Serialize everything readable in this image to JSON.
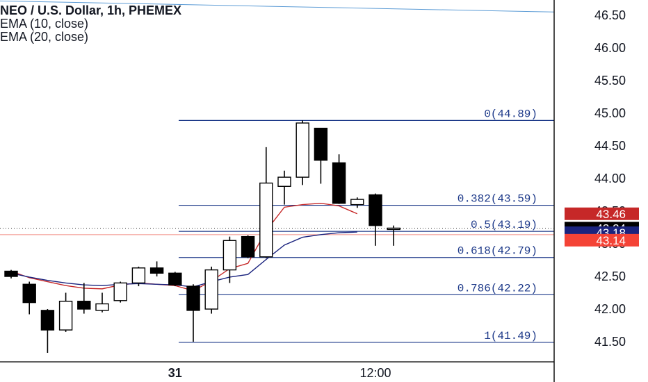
{
  "legend": {
    "title": "NEO / U.S. Dollar, 1h, PHEMEX",
    "ema1": "EMA (10, close)",
    "ema2": "EMA (20, close)"
  },
  "colors": {
    "fib": "#1e3a8a",
    "ema10": "#c62828",
    "ema20": "#1a237e",
    "candle_up_fill": "#ffffff",
    "candle_down_fill": "#000000",
    "grid_text": "#131722",
    "trendline": "#5b9bd5"
  },
  "chart_data": {
    "type": "candlestick",
    "symbol": "NEO / U.S. Dollar",
    "timeframe": "1h",
    "exchange": "PHEMEX",
    "ylim": [
      41.2,
      46.7
    ],
    "yticks": [
      "46.50",
      "46.00",
      "45.50",
      "45.00",
      "44.50",
      "44.00",
      "43.50",
      "43.00",
      "42.50",
      "42.00",
      "41.50"
    ],
    "xticks": [
      {
        "index": 9,
        "label": "31"
      },
      {
        "index": 20,
        "label": "12:00"
      }
    ],
    "candles": [
      {
        "o": 42.58,
        "h": 42.6,
        "l": 42.47,
        "c": 42.5
      },
      {
        "o": 42.38,
        "h": 42.42,
        "l": 41.92,
        "c": 42.1
      },
      {
        "o": 41.98,
        "h": 42.0,
        "l": 41.33,
        "c": 41.68
      },
      {
        "o": 41.68,
        "h": 42.25,
        "l": 41.65,
        "c": 42.12
      },
      {
        "o": 42.12,
        "h": 42.4,
        "l": 41.93,
        "c": 42.0
      },
      {
        "o": 41.98,
        "h": 42.25,
        "l": 41.95,
        "c": 42.08
      },
      {
        "o": 42.13,
        "h": 42.42,
        "l": 42.1,
        "c": 42.4
      },
      {
        "o": 42.4,
        "h": 42.65,
        "l": 42.35,
        "c": 42.63
      },
      {
        "o": 42.63,
        "h": 42.73,
        "l": 42.5,
        "c": 42.55
      },
      {
        "o": 42.55,
        "h": 42.57,
        "l": 42.35,
        "c": 42.37
      },
      {
        "o": 42.35,
        "h": 42.38,
        "l": 41.5,
        "c": 41.98
      },
      {
        "o": 42.0,
        "h": 42.65,
        "l": 41.93,
        "c": 42.6
      },
      {
        "o": 42.6,
        "h": 43.11,
        "l": 42.4,
        "c": 43.05
      },
      {
        "o": 43.11,
        "h": 43.13,
        "l": 42.78,
        "c": 42.8
      },
      {
        "o": 42.8,
        "h": 44.48,
        "l": 42.78,
        "c": 43.93
      },
      {
        "o": 43.88,
        "h": 44.12,
        "l": 43.6,
        "c": 44.02
      },
      {
        "o": 44.02,
        "h": 44.89,
        "l": 43.9,
        "c": 44.85
      },
      {
        "o": 44.77,
        "h": 44.77,
        "l": 43.92,
        "c": 44.28
      },
      {
        "o": 44.24,
        "h": 44.37,
        "l": 43.61,
        "c": 43.62
      },
      {
        "o": 43.6,
        "h": 43.71,
        "l": 43.55,
        "c": 43.68
      },
      {
        "o": 43.75,
        "h": 43.77,
        "l": 42.97,
        "c": 43.28
      },
      {
        "o": 43.24,
        "h": 43.28,
        "l": 42.97,
        "c": 43.24
      }
    ],
    "series": [
      {
        "name": "EMA (10, close)",
        "values": [
          42.58,
          42.48,
          42.42,
          42.36,
          42.32,
          42.31,
          42.37,
          42.4,
          42.38,
          42.36,
          42.28,
          42.43,
          42.62,
          42.7,
          43.2,
          43.56,
          43.6,
          43.62,
          43.58,
          43.46
        ]
      },
      {
        "name": "EMA (20, close)",
        "values": [
          42.55,
          42.49,
          42.44,
          42.4,
          42.37,
          42.36,
          42.38,
          42.39,
          42.38,
          42.37,
          42.34,
          42.42,
          42.49,
          42.53,
          42.76,
          42.98,
          43.1,
          43.14,
          43.17,
          43.18
        ]
      }
    ],
    "fib_levels": [
      {
        "ratio": "0",
        "value": 44.89,
        "label": "0(44.89)"
      },
      {
        "ratio": "0.382",
        "value": 43.59,
        "label": "0.382(43.59)"
      },
      {
        "ratio": "0.5",
        "value": 43.19,
        "label": "0.5(43.19)"
      },
      {
        "ratio": "0.618",
        "value": 42.79,
        "label": "0.618(42.79)"
      },
      {
        "ratio": "0.786",
        "value": 42.22,
        "label": "0.786(42.22)"
      },
      {
        "ratio": "1",
        "value": 41.49,
        "label": "1(41.49)"
      }
    ],
    "price_labels": [
      {
        "value": 43.46,
        "label": "43.46",
        "bg": "#c62828",
        "fg": "#ffffff"
      },
      {
        "value": 43.24,
        "label": "43.24",
        "bg": "#000000",
        "fg": "#ffffff"
      },
      {
        "value": 43.18,
        "label": "43.18",
        "bg": "#1a237e",
        "fg": "#ffffff"
      },
      {
        "value": 43.14,
        "label": "43.14",
        "bg": "#f44336",
        "fg": "#ffffff"
      }
    ],
    "current_price": 43.24,
    "horizontal_line": 43.14,
    "trendline": {
      "from": 46.72,
      "to": 46.55
    }
  }
}
